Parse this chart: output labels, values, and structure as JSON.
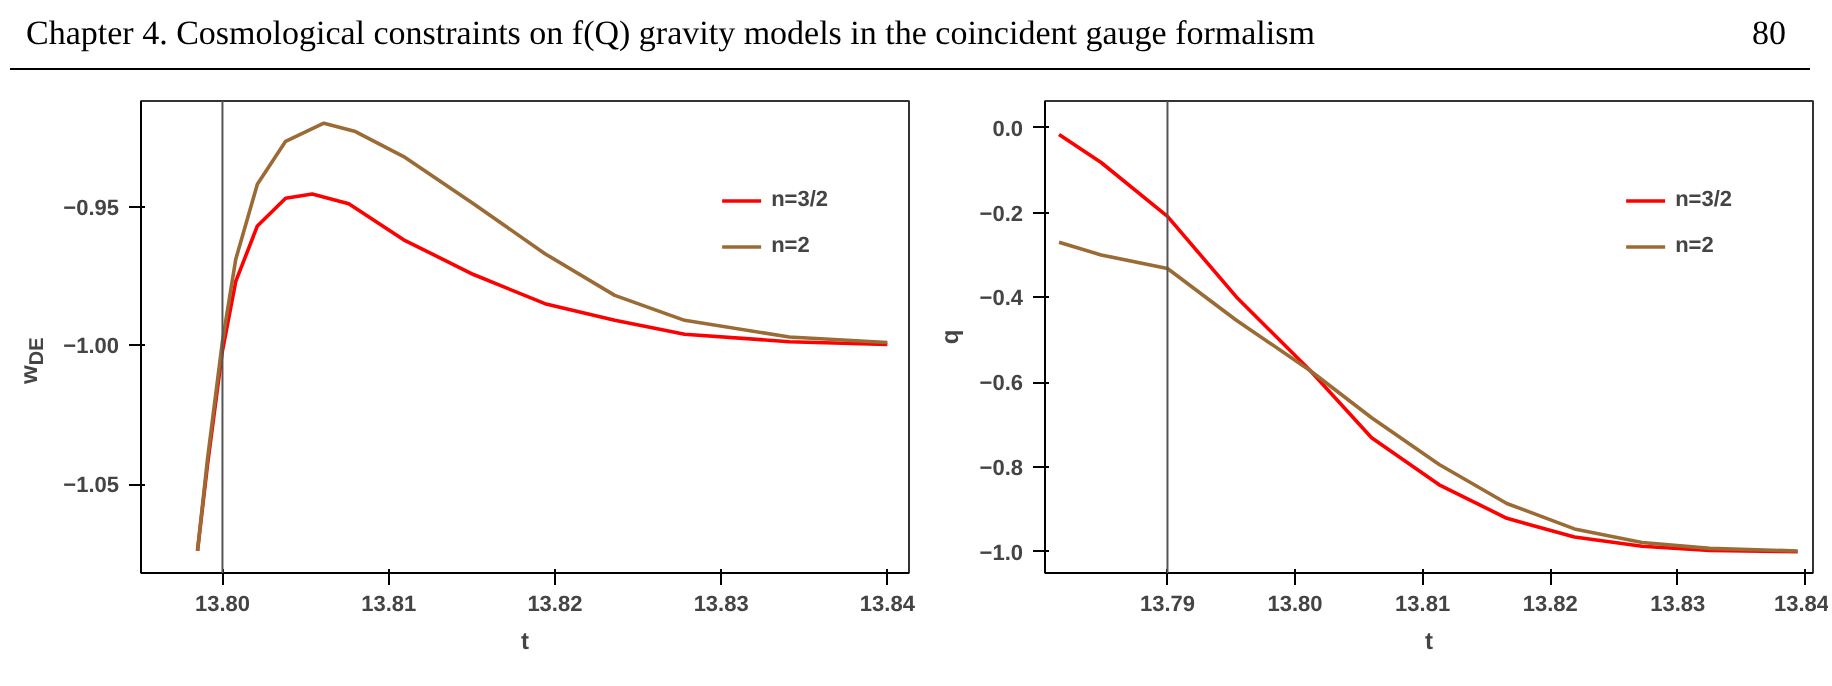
{
  "chart_data": [
    {
      "type": "line",
      "xlabel": "t",
      "ylabel": "w$_{DE}$",
      "legend": "right",
      "annotations": [
        "Chapter 4. Cosmological constraints on f(Q) gravity models in the coincident gauge formalism",
        "80"
      ],
      "xlim": [
        13.7951,
        13.8413
      ],
      "ylim": [
        -1.082,
        -0.912
      ],
      "xticks": [
        {
          "value": 13.8,
          "label": "13.80"
        },
        {
          "value": 13.81,
          "label": "13.81"
        },
        {
          "value": 13.82,
          "label": "13.82"
        },
        {
          "value": 13.83,
          "label": "13.83"
        },
        {
          "value": 13.84,
          "label": "13.84"
        }
      ],
      "yticks": [
        {
          "value": -1.05,
          "label": "−1.05"
        },
        {
          "value": -1.0,
          "label": "−1.00"
        },
        {
          "value": -0.95,
          "label": "−0.95"
        }
      ],
      "ref_lines": [
        {
          "axis": "x",
          "value": 13.8,
          "color": "#555555"
        }
      ],
      "series": [
        {
          "name": "n=3/2",
          "color": "#ff0000",
          "x": [
            13.7985,
            13.7991,
            13.8,
            13.8008,
            13.8021,
            13.8038,
            13.8054,
            13.8076,
            13.8109,
            13.8151,
            13.8194,
            13.8236,
            13.8278,
            13.8341,
            13.84
          ],
          "values": [
            -1.074,
            -1.043,
            -1.002,
            -0.977,
            -0.957,
            -0.947,
            -0.9455,
            -0.949,
            -0.962,
            -0.9745,
            -0.985,
            -0.991,
            -0.996,
            -0.9987,
            -0.9997
          ]
        },
        {
          "name": "n=2",
          "color": "#9b6b35",
          "x": [
            13.7985,
            13.7991,
            13.8,
            13.8008,
            13.8021,
            13.8038,
            13.8061,
            13.808,
            13.8109,
            13.8151,
            13.8194,
            13.8236,
            13.8278,
            13.8341,
            13.84
          ],
          "values": [
            -1.074,
            -1.041,
            -0.9985,
            -0.969,
            -0.942,
            -0.9265,
            -0.92,
            -0.923,
            -0.932,
            -0.949,
            -0.967,
            -0.982,
            -0.991,
            -0.997,
            -0.999
          ]
        }
      ]
    },
    {
      "type": "line",
      "xlabel": "t",
      "ylabel": "q",
      "legend": "right",
      "xlim": [
        13.7804,
        13.8406
      ],
      "ylim": [
        -1.05,
        0.063
      ],
      "xticks": [
        {
          "value": 13.79,
          "label": "13.79"
        },
        {
          "value": 13.8,
          "label": "13.80"
        },
        {
          "value": 13.81,
          "label": "13.81"
        },
        {
          "value": 13.82,
          "label": "13.82"
        },
        {
          "value": 13.83,
          "label": "13.83"
        },
        {
          "value": 13.84,
          "label": "13.84"
        }
      ],
      "yticks": [
        {
          "value": -1.0,
          "label": "−1.0"
        },
        {
          "value": -0.8,
          "label": "−0.8"
        },
        {
          "value": -0.6,
          "label": "−0.6"
        },
        {
          "value": -0.4,
          "label": "−0.4"
        },
        {
          "value": -0.2,
          "label": "−0.2"
        },
        {
          "value": 0.0,
          "label": "0.0"
        }
      ],
      "ref_lines": [
        {
          "axis": "x",
          "value": 13.79,
          "color": "#555555"
        }
      ],
      "series": [
        {
          "name": "n=3/2",
          "color": "#ff0000",
          "x": [
            13.7815,
            13.7848,
            13.79,
            13.7954,
            13.8012,
            13.806,
            13.8113,
            13.8166,
            13.8219,
            13.8272,
            13.8325,
            13.8394
          ],
          "values": [
            -0.016,
            -0.082,
            -0.209,
            -0.399,
            -0.573,
            -0.731,
            -0.842,
            -0.921,
            -0.965,
            -0.987,
            -0.997,
            -1.0
          ]
        },
        {
          "name": "n=2",
          "color": "#9b6b35",
          "x": [
            13.7815,
            13.7848,
            13.79,
            13.7954,
            13.8012,
            13.806,
            13.8113,
            13.8166,
            13.8219,
            13.8272,
            13.8325,
            13.8394
          ],
          "values": [
            -0.27,
            -0.3,
            -0.332,
            -0.454,
            -0.573,
            -0.684,
            -0.794,
            -0.886,
            -0.946,
            -0.978,
            -0.992,
            -0.998
          ]
        }
      ]
    }
  ]
}
